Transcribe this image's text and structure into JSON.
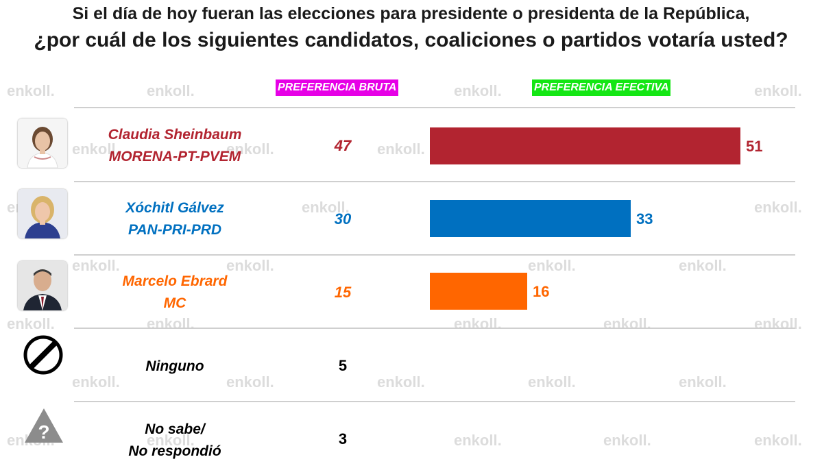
{
  "title_line1": "Si el día de hoy fueran las elecciones para presidente o presidenta de la República,",
  "title_line2": "¿por cuál de los siguientes candidatos, coaliciones o partidos votaría usted?",
  "watermark": "enkoll.",
  "header_bruta": "PREFERENCIA BRUTA",
  "header_efectiva": "PREFERENCIA EFECTIVA",
  "chart_data": {
    "type": "bar",
    "orientation": "horizontal",
    "title": "¿por cuál de los siguientes candidatos, coaliciones o partidos votaría usted?",
    "rows": [
      {
        "name": "Claudia Sheinbaum",
        "party": "MORENA-PT-PVEM",
        "bruta": 47,
        "efectiva": 51,
        "color": "#b22430"
      },
      {
        "name": "Xóchitl Gálvez",
        "party": "PAN-PRI-PRD",
        "bruta": 30,
        "efectiva": 33,
        "color": "#0070c0"
      },
      {
        "name": "Marcelo Ebrard",
        "party": "MC",
        "bruta": 15,
        "efectiva": 16,
        "color": "#ff6600"
      },
      {
        "name": "Ninguno",
        "party": "",
        "bruta": 5,
        "efectiva": null,
        "color": "#000000"
      },
      {
        "name": "No sabe/",
        "party": "No respondió",
        "bruta": 3,
        "efectiva": null,
        "color": "#000000"
      }
    ],
    "efectiva_max": 51
  }
}
